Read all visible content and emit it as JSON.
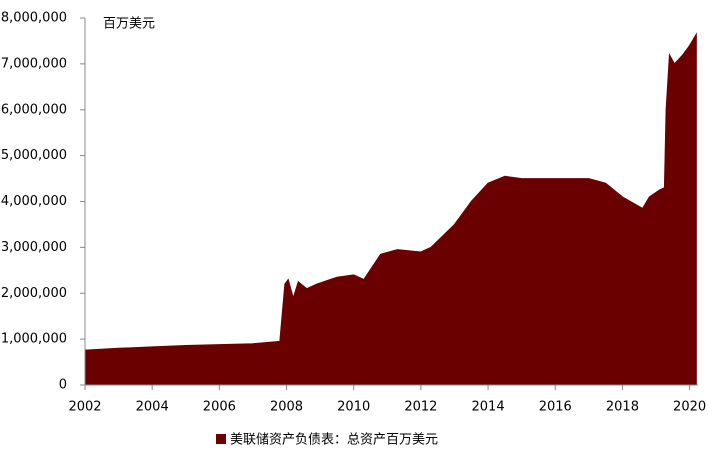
{
  "chart_data": {
    "type": "area",
    "unit_label": "百万美元",
    "x": [
      2002.0,
      2003.0,
      2004.0,
      2005.0,
      2006.0,
      2007.0,
      2007.8,
      2007.95,
      2008.05,
      2008.2,
      2008.35,
      2008.6,
      2008.9,
      2009.5,
      2010.0,
      2010.3,
      2010.8,
      2011.3,
      2012.0,
      2012.3,
      2013.0,
      2013.5,
      2014.0,
      2014.5,
      2015.0,
      2016.0,
      2017.0,
      2017.5,
      2018.0,
      2018.6,
      2018.8,
      2019.1,
      2019.25,
      2019.3,
      2019.4,
      2019.55,
      2019.8,
      2020.0,
      2020.2
    ],
    "series": [
      {
        "name": "美联储资产负债表：总资产百万美元",
        "color": "#6b0000",
        "values": [
          760000,
          800000,
          830000,
          860000,
          880000,
          900000,
          950000,
          2200000,
          2300000,
          1900000,
          2250000,
          2100000,
          2200000,
          2350000,
          2400000,
          2300000,
          2850000,
          2950000,
          2900000,
          3000000,
          3500000,
          4000000,
          4400000,
          4550000,
          4500000,
          4500000,
          4500000,
          4400000,
          4100000,
          3850000,
          4100000,
          4250000,
          4300000,
          6000000,
          7200000,
          7000000,
          7200000,
          7400000,
          7650000
        ]
      }
    ],
    "xlim": [
      2002,
      2020.25
    ],
    "xticks": [
      2002,
      2004,
      2006,
      2008,
      2010,
      2012,
      2014,
      2016,
      2018,
      2020
    ],
    "ylim": [
      0,
      8000000
    ],
    "yticks": [
      0,
      {
        "value": 1000000,
        "label": "1,000,000"
      },
      {
        "value": 2000000,
        "label": "2,000,000"
      },
      {
        "value": 3000000,
        "label": "3,000,000"
      },
      {
        "value": 4000000,
        "label": "4,000,000"
      },
      {
        "value": 5000000,
        "label": "5,000,000"
      },
      {
        "value": 6000000,
        "label": "6,000,000"
      },
      {
        "value": 7000000,
        "label": "7,000,000"
      },
      {
        "value": 8000000,
        "label": "8,000,000"
      }
    ]
  }
}
